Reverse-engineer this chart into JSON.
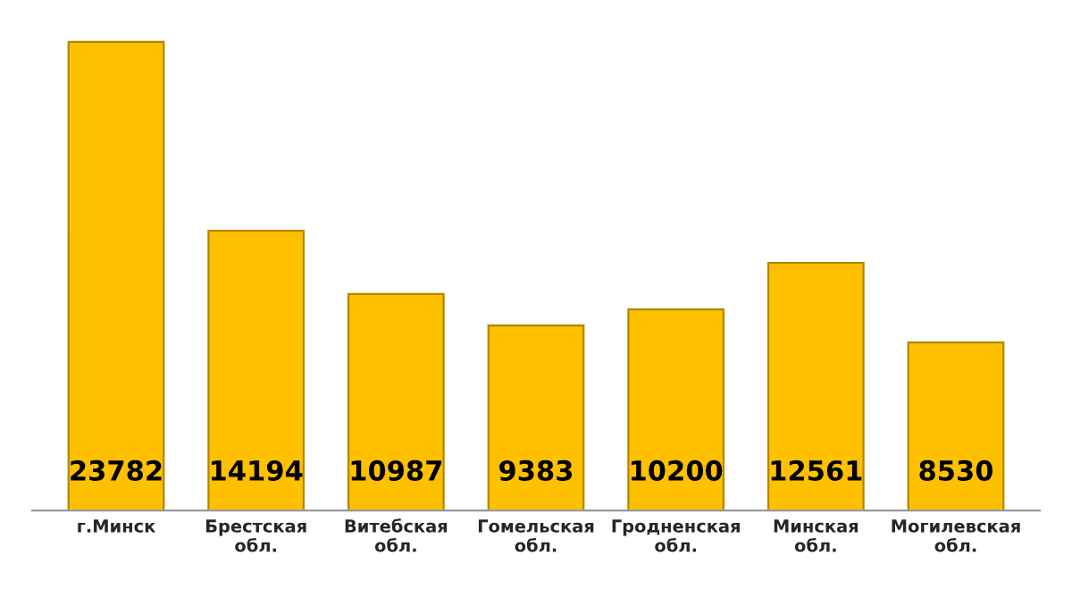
{
  "chart_data": {
    "type": "bar",
    "categories": [
      "г.Минск",
      "Брестская обл.",
      "Витебская обл.",
      "Гомельская обл.",
      "Гродненская обл.",
      "Минская обл.",
      "Могилевская обл."
    ],
    "values": [
      23782,
      14194,
      10987,
      9383,
      10200,
      12561,
      8530
    ],
    "color": "#ffc000",
    "data_labels": true,
    "grid": false,
    "legend": false
  }
}
